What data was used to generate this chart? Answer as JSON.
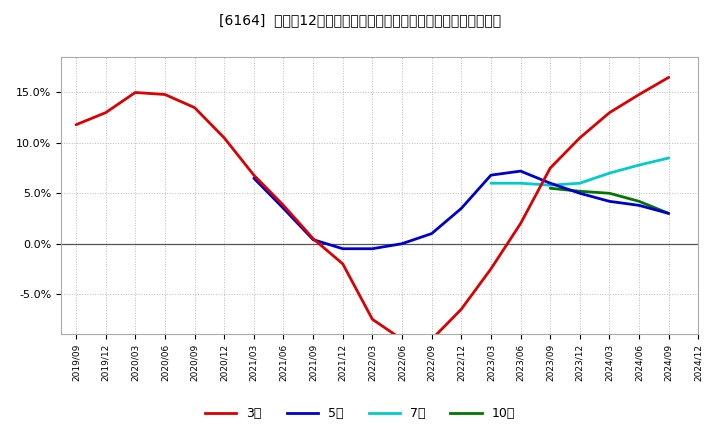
{
  "title": "[6164]  売上高12か月移動合計の対前年同期増減率の平均値の推移",
  "background_color": "#ffffff",
  "plot_bg_color": "#ffffff",
  "grid_color": "#bbbbbb",
  "ylim": [
    -0.09,
    0.185
  ],
  "yticks": [
    -0.05,
    0.0,
    0.05,
    0.1,
    0.15
  ],
  "ytick_labels": [
    "-5.0%",
    "0.0%",
    "5.0%",
    "10.0%",
    "15.0%"
  ],
  "series": {
    "3year": {
      "color": "#dd0000",
      "label": "3年",
      "x": [
        0,
        1,
        2,
        3,
        4,
        5,
        6,
        7,
        8,
        9,
        10,
        11,
        12,
        13,
        14,
        15,
        16,
        17,
        18,
        19,
        20
      ],
      "y": [
        0.118,
        0.13,
        0.15,
        0.148,
        0.135,
        0.105,
        0.068,
        0.038,
        0.005,
        -0.02,
        -0.075,
        -0.095,
        -0.095,
        -0.065,
        -0.025,
        0.02,
        0.075,
        0.105,
        0.13,
        0.148,
        0.165
      ]
    },
    "5year": {
      "color": "#0000cc",
      "label": "5年",
      "x": [
        6,
        7,
        8,
        9,
        10,
        11,
        12,
        13,
        14,
        15,
        16,
        17,
        18,
        19,
        20
      ],
      "y": [
        0.065,
        0.035,
        0.004,
        -0.005,
        -0.005,
        0.0,
        0.01,
        0.035,
        0.068,
        0.072,
        0.06,
        0.05,
        0.042,
        0.038,
        0.03
      ]
    },
    "7year": {
      "color": "#00cccc",
      "label": "7年",
      "x": [
        14,
        15,
        16,
        17,
        18,
        19,
        20
      ],
      "y": [
        0.06,
        0.06,
        0.058,
        0.06,
        0.07,
        0.078,
        0.085
      ]
    },
    "10year": {
      "color": "#007700",
      "label": "10年",
      "x": [
        16,
        17,
        18,
        19,
        20
      ],
      "y": [
        0.055,
        0.052,
        0.05,
        0.042,
        0.03
      ]
    }
  },
  "xtick_labels": [
    "2019/09",
    "2019/12",
    "2020/03",
    "2020/06",
    "2020/09",
    "2020/12",
    "2021/03",
    "2021/06",
    "2021/09",
    "2021/12",
    "2022/03",
    "2022/06",
    "2022/09",
    "2022/12",
    "2023/03",
    "2023/06",
    "2023/09",
    "2023/12",
    "2024/03",
    "2024/06",
    "2024/09",
    "2024/12"
  ],
  "legend_labels": [
    "3年",
    "5年",
    "7年",
    "10年"
  ],
  "legend_colors": [
    "#dd0000",
    "#0000cc",
    "#00cccc",
    "#007700"
  ]
}
